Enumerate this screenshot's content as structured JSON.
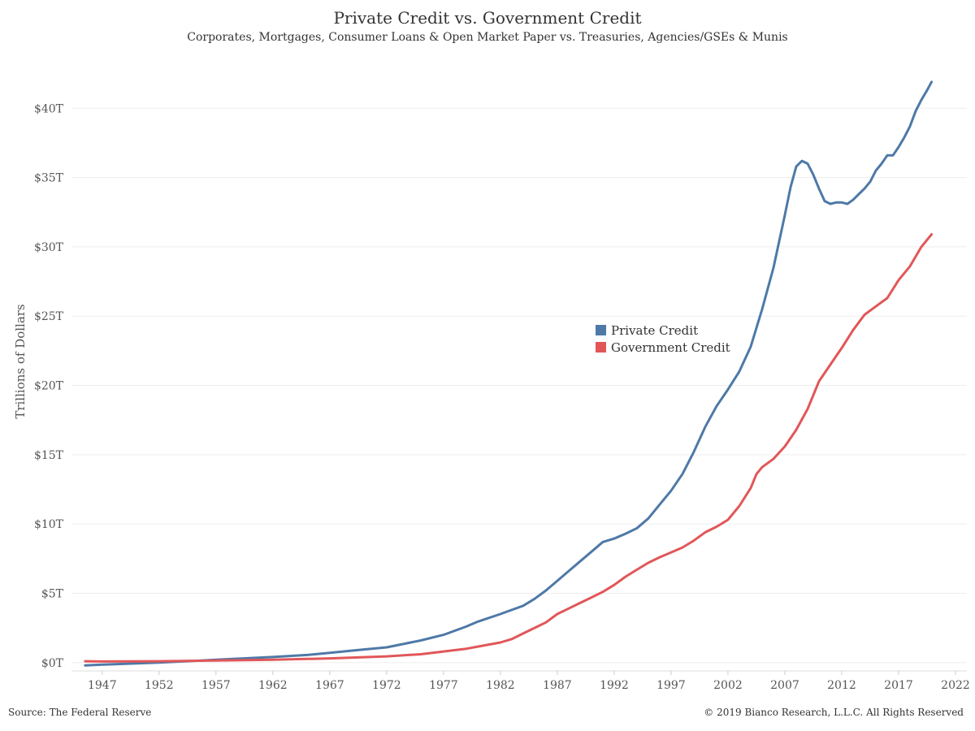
{
  "header": {
    "title": "Private Credit vs. Government Credit",
    "subtitle": "Corporates, Mortgages, Consumer Loans & Open Market Paper vs. Treasuries, Agencies/GSEs & Munis"
  },
  "footer": {
    "source": "Source: The Federal Reserve",
    "copyright": "© 2019 Bianco Research, L.L.C. All Rights Reserved"
  },
  "colors": {
    "private": "#4e79a7",
    "government": "#e15759",
    "grid": "#eeeeee"
  },
  "chart_data": {
    "type": "line",
    "title": "Private Credit vs. Government Credit",
    "subtitle": "Corporates, Mortgages, Consumer Loans & Open Market Paper vs. Treasuries, Agencies/GSEs & Munis",
    "xlabel": "",
    "ylabel": "Trillions of Dollars",
    "xlim": [
      1944.3,
      2023
    ],
    "ylim": [
      -0.6,
      44
    ],
    "x_ticks": [
      1947,
      1952,
      1957,
      1962,
      1967,
      1972,
      1977,
      1982,
      1987,
      1992,
      1997,
      2002,
      2007,
      2012,
      2017,
      2022
    ],
    "y_ticks": [
      {
        "value": 0,
        "label": "$0T"
      },
      {
        "value": 5,
        "label": "$5T"
      },
      {
        "value": 10,
        "label": "$10T"
      },
      {
        "value": 15,
        "label": "$15T"
      },
      {
        "value": 20,
        "label": "$20T"
      },
      {
        "value": 25,
        "label": "$25T"
      },
      {
        "value": 30,
        "label": "$30T"
      },
      {
        "value": 35,
        "label": "$35T"
      },
      {
        "value": 40,
        "label": "$40T"
      }
    ],
    "grid": true,
    "legend_position": "center",
    "series": [
      {
        "name": "Private Credit",
        "color": "#4e79a7",
        "points": [
          [
            1945.5,
            -0.2
          ],
          [
            1947,
            -0.15
          ],
          [
            1952,
            0.0
          ],
          [
            1957,
            0.2
          ],
          [
            1962,
            0.4
          ],
          [
            1965,
            0.55
          ],
          [
            1967,
            0.7
          ],
          [
            1970,
            0.95
          ],
          [
            1972,
            1.1
          ],
          [
            1975,
            1.6
          ],
          [
            1977,
            2.0
          ],
          [
            1979,
            2.6
          ],
          [
            1980,
            2.95
          ],
          [
            1982,
            3.5
          ],
          [
            1983,
            3.8
          ],
          [
            1984,
            4.1
          ],
          [
            1985,
            4.6
          ],
          [
            1986,
            5.2
          ],
          [
            1987,
            5.9
          ],
          [
            1988,
            6.6
          ],
          [
            1989,
            7.3
          ],
          [
            1990,
            8.0
          ],
          [
            1991,
            8.7
          ],
          [
            1992,
            8.95
          ],
          [
            1993,
            9.3
          ],
          [
            1994,
            9.7
          ],
          [
            1995,
            10.4
          ],
          [
            1996,
            11.4
          ],
          [
            1997,
            12.4
          ],
          [
            1998,
            13.6
          ],
          [
            1999,
            15.2
          ],
          [
            2000,
            17.0
          ],
          [
            2001,
            18.5
          ],
          [
            2002,
            19.7
          ],
          [
            2003,
            21.0
          ],
          [
            2004,
            22.8
          ],
          [
            2005,
            25.5
          ],
          [
            2006,
            28.5
          ],
          [
            2007,
            32.3
          ],
          [
            2007.5,
            34.3
          ],
          [
            2008,
            35.8
          ],
          [
            2008.5,
            36.2
          ],
          [
            2009,
            36.0
          ],
          [
            2009.5,
            35.2
          ],
          [
            2010,
            34.2
          ],
          [
            2010.5,
            33.3
          ],
          [
            2011,
            33.1
          ],
          [
            2011.5,
            33.2
          ],
          [
            2012,
            33.2
          ],
          [
            2012.5,
            33.1
          ],
          [
            2013,
            33.4
          ],
          [
            2013.5,
            33.8
          ],
          [
            2014,
            34.2
          ],
          [
            2014.5,
            34.7
          ],
          [
            2015,
            35.5
          ],
          [
            2015.5,
            36.0
          ],
          [
            2016,
            36.6
          ],
          [
            2016.5,
            36.6
          ],
          [
            2017,
            37.2
          ],
          [
            2017.5,
            37.9
          ],
          [
            2018,
            38.7
          ],
          [
            2018.5,
            39.8
          ],
          [
            2019,
            40.6
          ],
          [
            2019.5,
            41.3
          ],
          [
            2019.9,
            41.9
          ]
        ]
      },
      {
        "name": "Government Credit",
        "color": "#e15759",
        "points": [
          [
            1945.5,
            0.1
          ],
          [
            1947,
            0.08
          ],
          [
            1952,
            0.1
          ],
          [
            1957,
            0.15
          ],
          [
            1962,
            0.2
          ],
          [
            1967,
            0.3
          ],
          [
            1972,
            0.45
          ],
          [
            1975,
            0.6
          ],
          [
            1977,
            0.8
          ],
          [
            1979,
            1.0
          ],
          [
            1980,
            1.15
          ],
          [
            1982,
            1.45
          ],
          [
            1983,
            1.7
          ],
          [
            1984,
            2.1
          ],
          [
            1985,
            2.5
          ],
          [
            1986,
            2.9
          ],
          [
            1987,
            3.5
          ],
          [
            1988,
            3.9
          ],
          [
            1989,
            4.3
          ],
          [
            1990,
            4.7
          ],
          [
            1991,
            5.1
          ],
          [
            1992,
            5.6
          ],
          [
            1993,
            6.2
          ],
          [
            1994,
            6.7
          ],
          [
            1995,
            7.2
          ],
          [
            1996,
            7.6
          ],
          [
            1997,
            7.95
          ],
          [
            1998,
            8.3
          ],
          [
            1999,
            8.8
          ],
          [
            2000,
            9.4
          ],
          [
            2001,
            9.8
          ],
          [
            2002,
            10.3
          ],
          [
            2003,
            11.3
          ],
          [
            2004,
            12.6
          ],
          [
            2004.5,
            13.6
          ],
          [
            2005,
            14.1
          ],
          [
            2006,
            14.7
          ],
          [
            2007,
            15.6
          ],
          [
            2008,
            16.8
          ],
          [
            2009,
            18.3
          ],
          [
            2010,
            20.3
          ],
          [
            2011,
            21.5
          ],
          [
            2012,
            22.7
          ],
          [
            2013,
            24.0
          ],
          [
            2014,
            25.1
          ],
          [
            2015,
            25.7
          ],
          [
            2016,
            26.3
          ],
          [
            2017,
            27.6
          ],
          [
            2018,
            28.6
          ],
          [
            2019,
            30.0
          ],
          [
            2019.9,
            30.9
          ]
        ]
      }
    ]
  }
}
